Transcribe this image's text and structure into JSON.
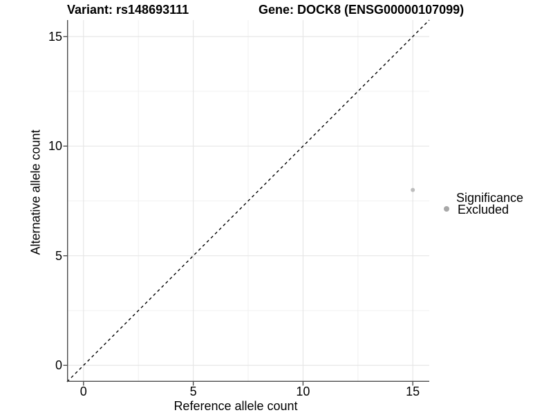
{
  "header": {
    "variant_title": "Variant: rs148693111",
    "gene_title": "Gene: DOCK8 (ENSG00000107099)"
  },
  "legend": {
    "title": "Significance",
    "items": [
      {
        "label": "Excluded",
        "key_color": "#a8a8a8"
      }
    ]
  },
  "chart_data": {
    "type": "scatter",
    "xlabel": "Reference allele count",
    "ylabel": "Alternative allele count",
    "xlim": [
      -0.75,
      15.75
    ],
    "ylim": [
      -0.75,
      15.75
    ],
    "x_ticks": [
      0,
      5,
      10,
      15
    ],
    "y_ticks": [
      0,
      5,
      10,
      15
    ],
    "x_minor_ticks": [
      2.5,
      7.5,
      12.5
    ],
    "y_minor_ticks": [
      2.5,
      7.5,
      12.5
    ],
    "grid": true,
    "legend_position": "right",
    "series": [
      {
        "name": "Excluded",
        "color": "#bdbdbd",
        "points": [
          {
            "x": 15,
            "y": 8
          }
        ]
      }
    ],
    "reference_line": {
      "slope": 1,
      "intercept": 0,
      "style": "dashed",
      "color": "#000000"
    },
    "style": {
      "axis_color": "#4a4a4a",
      "major_grid_color": "#e4e4e4",
      "minor_grid_color": "#f0f0f0",
      "background": "#ffffff"
    }
  }
}
